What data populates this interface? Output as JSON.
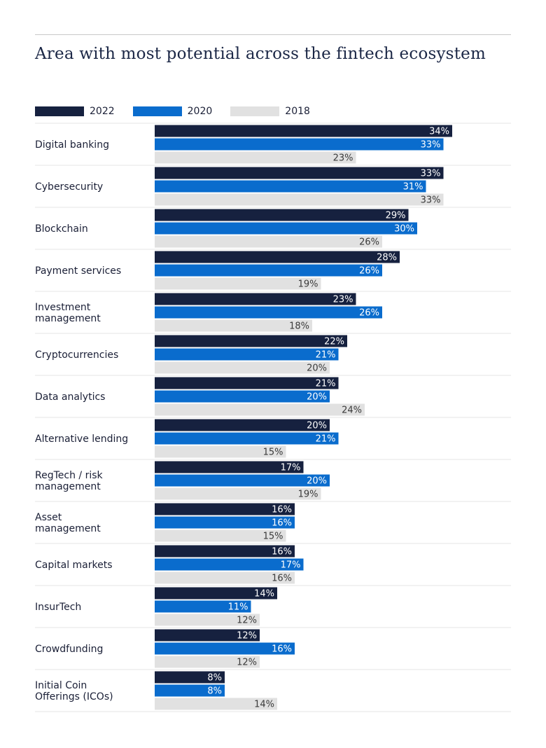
{
  "title": "Area with most potential across the fintech ecosystem",
  "colors": {
    "2022": "#16213f",
    "2020": "#0a6ccd",
    "2018": "#e1e1e1"
  },
  "chart_data": {
    "type": "bar",
    "orientation": "horizontal",
    "title": "Area with most potential across the fintech ecosystem",
    "xlabel": "",
    "ylabel": "",
    "grid": false,
    "legend_position": "top-left",
    "value_suffix": "%",
    "xlim": [
      0,
      40
    ],
    "categories": [
      "Digital banking",
      "Cybersecurity",
      "Blockchain",
      "Payment services",
      "Investment\nmanagement",
      "Cryptocurrencies",
      "Data analytics",
      "Alternative lending",
      "RegTech / risk\nmanagement",
      "Asset\nmanagement",
      "Capital markets",
      "InsurTech",
      "Crowdfunding",
      "Initial Coin\nOfferings (ICOs)"
    ],
    "series": [
      {
        "name": "2022",
        "values": [
          34,
          33,
          29,
          28,
          23,
          22,
          21,
          20,
          17,
          16,
          16,
          14,
          12,
          8
        ]
      },
      {
        "name": "2020",
        "values": [
          33,
          31,
          30,
          26,
          26,
          21,
          20,
          21,
          20,
          16,
          17,
          11,
          16,
          8
        ]
      },
      {
        "name": "2018",
        "values": [
          23,
          33,
          26,
          19,
          18,
          20,
          24,
          15,
          19,
          15,
          16,
          12,
          12,
          14
        ]
      }
    ]
  }
}
